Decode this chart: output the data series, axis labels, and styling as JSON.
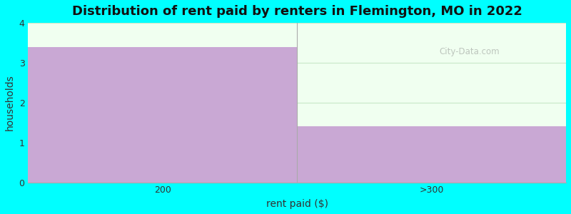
{
  "categories": [
    "200",
    ">300"
  ],
  "values": [
    3.4,
    1.4
  ],
  "bar_color": "#c9a8d4",
  "title": "Distribution of rent paid by renters in Flemington, MO in 2022",
  "xlabel": "rent paid ($)",
  "ylabel": "households",
  "ylim": [
    0,
    4
  ],
  "yticks": [
    0,
    1,
    2,
    3,
    4
  ],
  "background_color": "#00ffff",
  "plot_bg_color": "#f0fff0",
  "title_fontsize": 13,
  "axis_label_fontsize": 10,
  "tick_fontsize": 9,
  "watermark": "City-Data.com"
}
